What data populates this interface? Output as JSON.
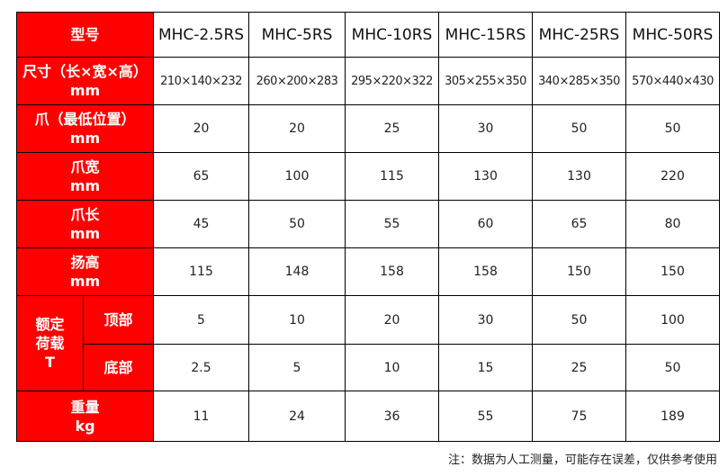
{
  "header": {
    "label": "型号",
    "models": [
      "MHC-2.5RS",
      "MHC-5RS",
      "MHC-10RS",
      "MHC-15RS",
      "MHC-25RS",
      "MHC-50RS"
    ]
  },
  "rows": [
    {
      "label": "尺寸（长×宽×高）",
      "unit": "mm",
      "values": [
        "210×140×232",
        "260×200×283",
        "295×220×322",
        "305×255×350",
        "340×285×350",
        "570×440×430"
      ]
    },
    {
      "label": "爪（最低位置）",
      "unit": "mm",
      "values": [
        "20",
        "20",
        "25",
        "30",
        "50",
        "50"
      ]
    },
    {
      "label": "爪宽",
      "unit": "mm",
      "values": [
        "65",
        "100",
        "115",
        "130",
        "130",
        "220"
      ]
    },
    {
      "label": "爪长",
      "unit": "mm",
      "values": [
        "45",
        "50",
        "55",
        "60",
        "65",
        "80"
      ]
    },
    {
      "label": "扬高",
      "unit": "mm",
      "values": [
        "115",
        "148",
        "158",
        "158",
        "150",
        "150"
      ]
    }
  ],
  "load": {
    "label1": "额定",
    "label2": "荷载",
    "unit": "T",
    "top": {
      "label": "顶部",
      "values": [
        "5",
        "10",
        "20",
        "30",
        "50",
        "100"
      ]
    },
    "bottom": {
      "label": "底部",
      "values": [
        "2.5",
        "5",
        "10",
        "15",
        "25",
        "50"
      ]
    }
  },
  "weight": {
    "label": "重量",
    "unit": "kg",
    "values": [
      "11",
      "24",
      "36",
      "55",
      "75",
      "189"
    ]
  },
  "note": "注：数据为人工测量，可能存在误差，仅供参考使用",
  "colors": {
    "header_bg": "#ff0000"
  }
}
